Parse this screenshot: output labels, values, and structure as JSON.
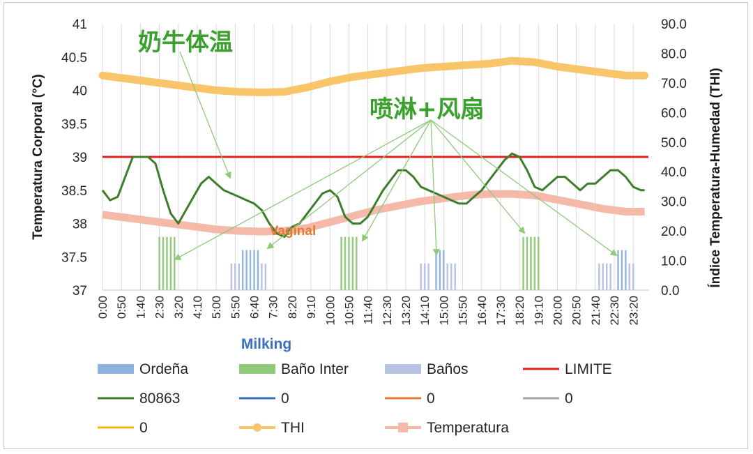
{
  "chart_data": {
    "type": "line",
    "ylabel": "Temperatura Corporal (°C)",
    "y2label": "Índice Temperatura-Humedad (THI)",
    "xlabel": "Milking",
    "hidden_label": "Vaginal",
    "ylim": [
      37,
      41
    ],
    "y_ticks": [
      "37",
      "37.5",
      "38",
      "38.5",
      "39",
      "39.5",
      "40",
      "40.5",
      "41"
    ],
    "y2lim": [
      0,
      90
    ],
    "y2_ticks": [
      "0.0",
      "10.0",
      "20.0",
      "30.0",
      "40.0",
      "50.0",
      "60.0",
      "70.0",
      "80.0",
      "90.0"
    ],
    "x_tick_labels": [
      "0:00",
      "0:50",
      "1:40",
      "2:30",
      "3:20",
      "4:10",
      "5:00",
      "5:50",
      "6:40",
      "7:30",
      "8:20",
      "9:10",
      "10:00",
      "10:50",
      "11:40",
      "12:30",
      "13:20",
      "14:10",
      "15:00",
      "15:50",
      "16:40",
      "17:30",
      "18:20",
      "19:10",
      "20:00",
      "20:50",
      "21:40",
      "22:30",
      "23:20"
    ],
    "grid": "vertical",
    "legend_position": "bottom",
    "limit_value": 39,
    "annotations": [
      {
        "text": "奶牛体温"
      },
      {
        "text": "喷淋+风扇"
      }
    ],
    "colors": {
      "ordena": "#8fb3df",
      "bano_inter": "#8fc97a",
      "banos": "#b7c3e3",
      "limite": "#e02020",
      "cow": "#3d7d2a",
      "thi": "#f8c56a",
      "temperatura": "#f4b9a8",
      "arrow": "#8fc97a",
      "blue0": "#3a6fbf",
      "orange0": "#e07a30",
      "gray0": "#a6a6a6",
      "yellow0": "#f2b800",
      "hidden": "#e07a30"
    },
    "legend": [
      {
        "label": "Ordeña",
        "key": "ordena",
        "style": "bar"
      },
      {
        "label": "Baño Inter",
        "key": "bano_inter",
        "style": "bar"
      },
      {
        "label": "Baños",
        "key": "banos",
        "style": "bar"
      },
      {
        "label": "LIMITE",
        "key": "limite",
        "style": "line"
      },
      {
        "label": "80863",
        "key": "cow",
        "style": "line"
      },
      {
        "label": "0",
        "key": "blue0",
        "style": "line"
      },
      {
        "label": "0",
        "key": "orange0",
        "style": "line"
      },
      {
        "label": "0",
        "key": "gray0",
        "style": "line"
      },
      {
        "label": "0",
        "key": "yellow0",
        "style": "line"
      },
      {
        "label": "THI",
        "key": "thi",
        "style": "dotline"
      },
      {
        "label": "Temperatura",
        "key": "temperatura",
        "style": "squareline"
      }
    ],
    "bar_groups": {
      "ordena": {
        "times": [
          "6:10",
          "6:20",
          "6:30",
          "6:40",
          "6:50",
          "14:40",
          "14:50",
          "15:00",
          "22:40",
          "22:50",
          "23:00"
        ],
        "value": 37.6
      },
      "bano_inter": {
        "times": [
          "2:30",
          "2:40",
          "2:50",
          "3:00",
          "3:10",
          "10:30",
          "10:40",
          "10:50",
          "11:00",
          "11:10",
          "18:30",
          "18:40",
          "18:50",
          "19:00",
          "19:10"
        ],
        "value": 37.8
      },
      "banos": {
        "times": [
          "5:40",
          "5:50",
          "6:00",
          "7:00",
          "7:10",
          "14:00",
          "14:10",
          "14:20",
          "15:10",
          "15:20",
          "15:30",
          "21:50",
          "22:00",
          "22:10",
          "22:20",
          "23:10",
          "23:20"
        ],
        "value": 37.4
      }
    },
    "series": [
      {
        "name": "80863",
        "key": "cow",
        "axis": "left",
        "x": [
          "0:00",
          "0:20",
          "0:40",
          "1:00",
          "1:20",
          "1:40",
          "2:00",
          "2:20",
          "2:40",
          "3:00",
          "3:20",
          "3:40",
          "4:00",
          "4:20",
          "4:40",
          "5:00",
          "5:20",
          "5:40",
          "6:00",
          "6:20",
          "6:40",
          "7:00",
          "7:20",
          "7:40",
          "8:00",
          "8:20",
          "8:40",
          "9:00",
          "9:20",
          "9:40",
          "10:00",
          "10:20",
          "10:40",
          "11:00",
          "11:20",
          "11:40",
          "12:00",
          "12:20",
          "12:40",
          "13:00",
          "13:20",
          "13:40",
          "14:00",
          "14:20",
          "14:40",
          "15:00",
          "15:20",
          "15:40",
          "16:00",
          "16:20",
          "16:40",
          "17:00",
          "17:20",
          "17:40",
          "18:00",
          "18:20",
          "18:40",
          "19:00",
          "19:20",
          "19:40",
          "20:00",
          "20:20",
          "20:40",
          "21:00",
          "21:20",
          "21:40",
          "22:00",
          "22:20",
          "22:40",
          "23:00",
          "23:20",
          "23:40",
          "23:50"
        ],
        "values": [
          38.5,
          38.35,
          38.4,
          38.7,
          39.0,
          39.0,
          39.0,
          38.9,
          38.5,
          38.15,
          38.0,
          38.2,
          38.4,
          38.6,
          38.7,
          38.6,
          38.5,
          38.45,
          38.4,
          38.35,
          38.3,
          38.2,
          38.0,
          37.85,
          37.8,
          37.95,
          38.0,
          38.15,
          38.3,
          38.45,
          38.5,
          38.4,
          38.1,
          38.0,
          38.0,
          38.1,
          38.3,
          38.5,
          38.65,
          38.8,
          38.8,
          38.7,
          38.55,
          38.5,
          38.45,
          38.4,
          38.35,
          38.3,
          38.3,
          38.4,
          38.5,
          38.65,
          38.8,
          38.95,
          39.05,
          39.0,
          38.8,
          38.55,
          38.5,
          38.6,
          38.7,
          38.7,
          38.6,
          38.5,
          38.6,
          38.6,
          38.7,
          38.8,
          38.8,
          38.7,
          38.55,
          38.5,
          38.5
        ]
      },
      {
        "name": "THI",
        "key": "thi",
        "axis": "right",
        "x": [
          "0:00",
          "1:00",
          "2:00",
          "3:00",
          "4:00",
          "5:00",
          "6:00",
          "7:00",
          "8:00",
          "9:00",
          "10:00",
          "11:00",
          "12:00",
          "13:00",
          "14:00",
          "15:00",
          "16:00",
          "17:00",
          "18:00",
          "19:00",
          "20:00",
          "21:00",
          "22:00",
          "23:00",
          "23:50"
        ],
        "values": [
          72.5,
          71.5,
          70.5,
          69.5,
          68.5,
          67.5,
          67.0,
          66.8,
          67.0,
          68.5,
          70.5,
          72.0,
          73.0,
          74.0,
          75.0,
          75.5,
          76.0,
          76.5,
          77.5,
          77.0,
          75.5,
          74.5,
          73.5,
          72.5,
          72.5
        ]
      },
      {
        "name": "Temperatura",
        "key": "temperatura",
        "axis": "right",
        "x": [
          "0:00",
          "1:00",
          "2:00",
          "3:00",
          "4:00",
          "5:00",
          "6:00",
          "7:00",
          "8:00",
          "9:00",
          "10:00",
          "11:00",
          "12:00",
          "13:00",
          "14:00",
          "15:00",
          "16:00",
          "17:00",
          "18:00",
          "19:00",
          "20:00",
          "21:00",
          "22:00",
          "23:00",
          "23:50"
        ],
        "values": [
          25.5,
          24.5,
          23.5,
          22.5,
          21.5,
          20.5,
          20.0,
          19.8,
          20.0,
          21.0,
          23.0,
          25.0,
          27.0,
          28.5,
          30.0,
          31.0,
          32.0,
          32.5,
          32.5,
          32.0,
          30.5,
          29.0,
          27.5,
          26.5,
          26.5
        ]
      }
    ]
  }
}
